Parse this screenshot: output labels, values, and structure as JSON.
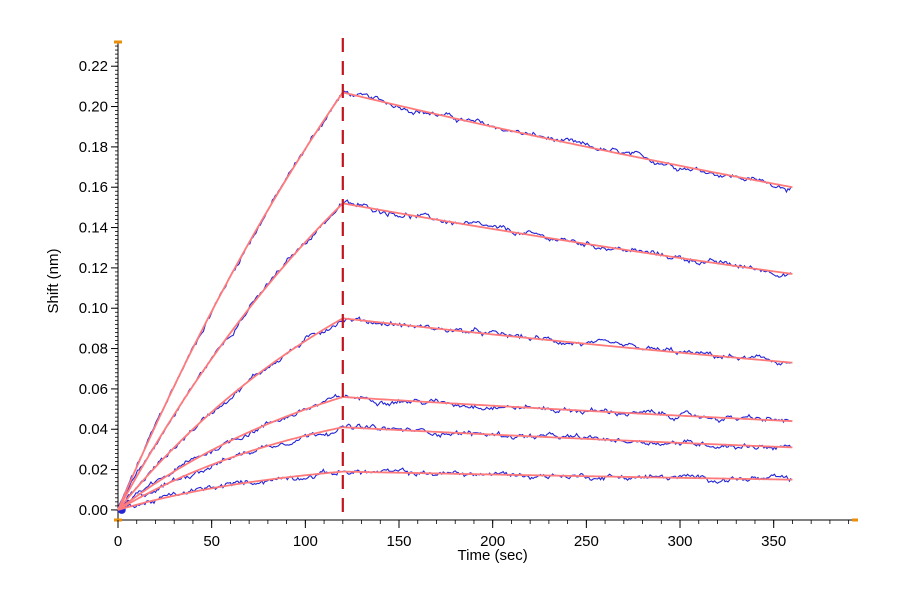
{
  "chart_data": {
    "type": "line",
    "title": "",
    "xlabel": "Time (sec)",
    "ylabel": "Shift (nm)",
    "xlim": [
      0,
      395
    ],
    "ylim": [
      -0.005,
      0.232
    ],
    "xticks": [
      0,
      50,
      100,
      150,
      200,
      250,
      300,
      350
    ],
    "yticks": [
      0.0,
      0.02,
      0.04,
      0.06,
      0.08,
      0.1,
      0.12,
      0.14,
      0.16,
      0.18,
      0.2,
      0.22
    ],
    "ytick_labels": [
      "0.00",
      "0.02",
      "0.04",
      "0.06",
      "0.08",
      "0.10",
      "0.12",
      "0.14",
      "0.16",
      "0.18",
      "0.20",
      "0.22"
    ],
    "grid": false,
    "legend": "none",
    "association_end_marker": 120,
    "end_time": 360,
    "series": [
      {
        "association_peak": 0.207,
        "dissociation_end": 0.16
      },
      {
        "association_peak": 0.152,
        "dissociation_end": 0.117
      },
      {
        "association_peak": 0.095,
        "dissociation_end": 0.073
      },
      {
        "association_peak": 0.056,
        "dissociation_end": 0.044
      },
      {
        "association_peak": 0.041,
        "dissociation_end": 0.031
      },
      {
        "association_peak": 0.019,
        "dissociation_end": 0.015
      }
    ],
    "colors": {
      "measured": "#2424d6",
      "fit": "#ff7a7a",
      "marker": "#c0141e",
      "axis_caps": "#e8900a"
    }
  }
}
